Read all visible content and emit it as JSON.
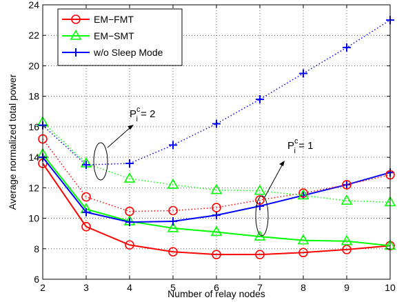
{
  "chart_data": {
    "type": "line",
    "title": "",
    "xlabel": "Number of relay nodes",
    "ylabel": "Average normalized total power",
    "xlim": [
      2,
      10
    ],
    "ylim": [
      6,
      24
    ],
    "xticks": [
      2,
      3,
      4,
      5,
      6,
      7,
      8,
      9,
      10
    ],
    "yticks": [
      6,
      8,
      10,
      12,
      14,
      16,
      18,
      20,
      22,
      24
    ],
    "grid": true,
    "legend_position": "top-left",
    "x": [
      2,
      3,
      4,
      5,
      6,
      7,
      8,
      9,
      10
    ],
    "series": [
      {
        "name": "EM−FMT",
        "case": "Pc=1",
        "style": "solid",
        "marker": "circle",
        "color": "#ff0000",
        "values": [
          13.6,
          9.45,
          8.25,
          7.8,
          7.62,
          7.62,
          7.75,
          7.95,
          8.2
        ]
      },
      {
        "name": "EM−SMT",
        "case": "Pc=1",
        "style": "solid",
        "marker": "triangle",
        "color": "#00ff00",
        "values": [
          14.2,
          10.6,
          9.8,
          9.35,
          9.1,
          8.8,
          8.55,
          8.5,
          8.2
        ]
      },
      {
        "name": "w/o Sleep Mode",
        "case": "Pc=1",
        "style": "solid",
        "marker": "plus",
        "color": "#0000ff",
        "values": [
          14.0,
          10.4,
          9.75,
          9.8,
          10.2,
          10.8,
          11.5,
          12.2,
          13.0
        ]
      },
      {
        "name": "EM−FMT",
        "case": "Pc=2",
        "style": "dotted",
        "marker": "circle",
        "color": "#ff0000",
        "values": [
          15.2,
          11.4,
          10.45,
          10.5,
          10.7,
          11.2,
          11.65,
          12.2,
          12.85
        ]
      },
      {
        "name": "EM−SMT",
        "case": "Pc=2",
        "style": "dotted",
        "marker": "triangle",
        "color": "#00ff00",
        "values": [
          16.3,
          13.6,
          12.6,
          12.2,
          11.85,
          11.8,
          11.5,
          11.15,
          11.05
        ]
      },
      {
        "name": "w/o Sleep Mode",
        "case": "Pc=2",
        "style": "dotted",
        "marker": "plus",
        "color": "#0000ff",
        "values": [
          16.1,
          13.5,
          13.6,
          14.8,
          16.2,
          17.8,
          19.5,
          21.2,
          23.0
        ]
      }
    ],
    "annotations": [
      {
        "base": "P",
        "sub": "i",
        "sup": "c",
        "rest": " = 2"
      },
      {
        "base": "P",
        "sub": "i",
        "sup": "c",
        "rest": " = 1"
      }
    ]
  }
}
